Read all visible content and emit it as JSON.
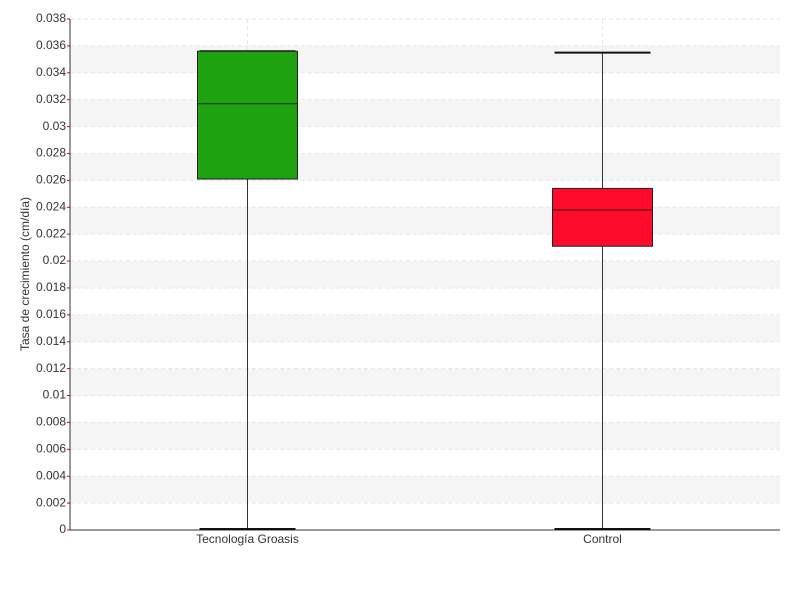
{
  "chart_data": {
    "type": "box",
    "y_label": "Tasa de crecimiento (cm/día)",
    "categories": [
      "Tecnología Groasis",
      "Control"
    ],
    "boxes": [
      {
        "min": 0,
        "q1": 0.0261,
        "median": 0.0317,
        "q3": 0.0356,
        "max": 0.0356,
        "color": "#1fa20f"
      },
      {
        "min": 0,
        "q1": 0.0211,
        "median": 0.0238,
        "q3": 0.0254,
        "max": 0.0355,
        "color": "#ff0a2a"
      }
    ],
    "ylim": [
      0,
      0.038
    ],
    "yticks": [
      0,
      0.002,
      0.004,
      0.006,
      0.008,
      0.01,
      0.012,
      0.014,
      0.016,
      0.018,
      0.02,
      0.022,
      0.024,
      0.026,
      0.028,
      0.03,
      0.032,
      0.034,
      0.036,
      0.038
    ],
    "grid": true
  }
}
